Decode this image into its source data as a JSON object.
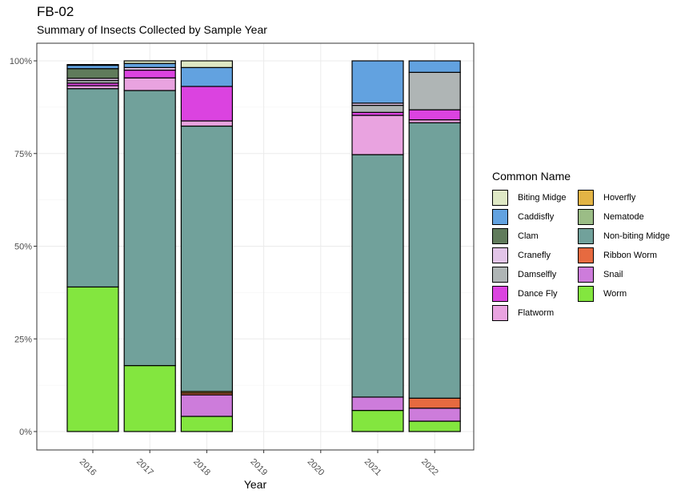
{
  "chart_data": {
    "type": "bar",
    "stacked": true,
    "normalized": true,
    "title": "FB-02",
    "subtitle": "Summary of Insects Collected by Sample Year",
    "xlabel": "Year",
    "ylabel": "",
    "categories": [
      "2016",
      "2017",
      "2018",
      "2019",
      "2020",
      "2021",
      "2022"
    ],
    "y_ticks": [
      0,
      25,
      50,
      75,
      100
    ],
    "y_tick_labels": [
      "0%",
      "25%",
      "50%",
      "75%",
      "100%"
    ],
    "ylim": [
      0,
      100
    ],
    "grid": true,
    "legend_title": "Common Name",
    "legend_position": "right",
    "series": [
      {
        "name": "Worm",
        "color": "#83e63f",
        "values": [
          39.0,
          17.8,
          4.1,
          0,
          0,
          5.7,
          2.8
        ]
      },
      {
        "name": "Snail",
        "color": "#cd7cdb",
        "values": [
          0,
          0,
          5.8,
          0,
          0,
          3.6,
          3.5
        ]
      },
      {
        "name": "Ribbon Worm",
        "color": "#e66a40",
        "values": [
          0,
          0,
          0.5,
          0,
          0,
          0,
          2.7
        ]
      },
      {
        "name": "Hoverfly",
        "color": "#e3b445",
        "values": [
          0,
          0,
          0.4,
          0,
          0,
          0,
          0
        ]
      },
      {
        "name": "Non-biting Midge",
        "color": "#71a19b",
        "values": [
          53.5,
          74.2,
          71.6,
          0,
          0,
          65.4,
          74.3
        ]
      },
      {
        "name": "Nematode",
        "color": "#9bbd86",
        "values": [
          0,
          0,
          0,
          0,
          0,
          0,
          0
        ]
      },
      {
        "name": "Flatworm",
        "color": "#e9a3e0",
        "values": [
          0.8,
          3.4,
          1.4,
          0,
          0,
          10.6,
          0.8
        ]
      },
      {
        "name": "Dance Fly",
        "color": "#db43e0",
        "values": [
          0.7,
          2.1,
          9.3,
          0,
          0,
          0.8,
          2.7
        ]
      },
      {
        "name": "Damselfly",
        "color": "#afb5b5",
        "values": [
          0.7,
          0,
          0,
          0,
          0,
          1.9,
          10.1
        ]
      },
      {
        "name": "Cranefly",
        "color": "#e2c5e8",
        "values": [
          0.6,
          0.7,
          0,
          0,
          0,
          0.6,
          0
        ]
      },
      {
        "name": "Clam",
        "color": "#607b5b",
        "values": [
          2.6,
          0,
          0,
          0,
          0,
          0,
          0
        ]
      },
      {
        "name": "Caddisfly",
        "color": "#62a2e0",
        "values": [
          0.9,
          1.1,
          5.1,
          0,
          0,
          11.4,
          3.1
        ]
      },
      {
        "name": "Biting Midge",
        "color": "#dfe9c5",
        "values": [
          0.2,
          0.7,
          1.8,
          0,
          0,
          0,
          0
        ]
      }
    ],
    "legend_items": [
      {
        "name": "Biting Midge",
        "color": "#dfe9c5"
      },
      {
        "name": "Caddisfly",
        "color": "#62a2e0"
      },
      {
        "name": "Clam",
        "color": "#607b5b"
      },
      {
        "name": "Cranefly",
        "color": "#e2c5e8"
      },
      {
        "name": "Damselfly",
        "color": "#afb5b5"
      },
      {
        "name": "Dance Fly",
        "color": "#db43e0"
      },
      {
        "name": "Flatworm",
        "color": "#e9a3e0"
      },
      {
        "name": "Hoverfly",
        "color": "#e3b445"
      },
      {
        "name": "Nematode",
        "color": "#9bbd86"
      },
      {
        "name": "Non-biting Midge",
        "color": "#71a19b"
      },
      {
        "name": "Ribbon Worm",
        "color": "#e66a40"
      },
      {
        "name": "Snail",
        "color": "#cd7cdb"
      },
      {
        "name": "Worm",
        "color": "#83e63f"
      }
    ]
  }
}
